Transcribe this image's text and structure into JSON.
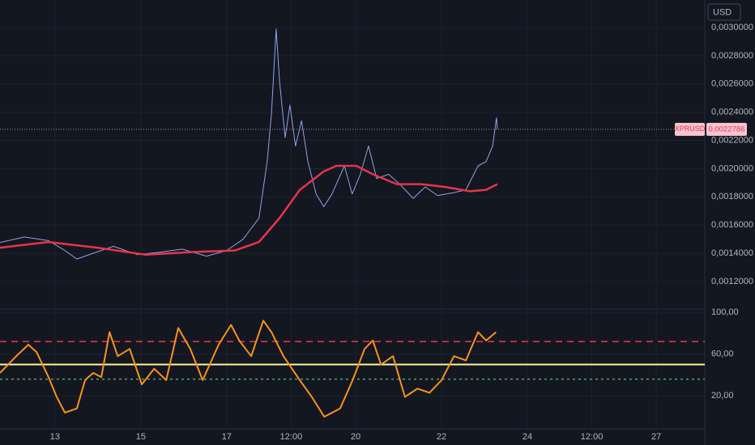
{
  "toolbar": {
    "currency": "USD"
  },
  "chart_data": [
    {
      "type": "line",
      "xlim": [
        11.72,
        28.13
      ],
      "ylim": [
        0.001005,
        0.003195
      ],
      "yticks": [
        {
          "value": 0.0012,
          "label": "0,0012000"
        },
        {
          "value": 0.0014,
          "label": "0,0014000"
        },
        {
          "value": 0.0016,
          "label": "0,0016000"
        },
        {
          "value": 0.0018,
          "label": "0,0018000"
        },
        {
          "value": 0.002,
          "label": "0,0020000"
        },
        {
          "value": 0.0022,
          "label": "0,0022000"
        },
        {
          "value": 0.0024,
          "label": "0,0024000"
        },
        {
          "value": 0.0026,
          "label": "0,0026000"
        },
        {
          "value": 0.0028,
          "label": "0,0028000"
        },
        {
          "value": 0.003,
          "label": "0,0030000"
        }
      ],
      "grid": true,
      "last_price": {
        "symbol": "XPRUSD",
        "value": 0.0022786,
        "label": "0,0022786"
      },
      "series": [
        {
          "color": "#8fa3e0",
          "width": 1,
          "x": [
            11.72,
            12.29,
            12.85,
            13.23,
            13.51,
            13.98,
            14.36,
            14.92,
            15.49,
            15.96,
            16.53,
            17.0,
            17.38,
            17.75,
            17.94,
            18.04,
            18.15,
            18.23,
            18.36,
            18.47,
            18.6,
            18.74,
            18.89,
            19.08,
            19.26,
            19.45,
            19.74,
            19.92,
            20.11,
            20.3,
            20.49,
            20.77,
            21.06,
            21.34,
            21.62,
            21.91,
            22.28,
            22.57,
            22.85,
            23.04,
            23.19,
            23.28,
            23.3
          ],
          "values": [
            0.001476,
            0.001516,
            0.00149,
            0.00142,
            0.00136,
            0.00141,
            0.00145,
            0.00139,
            0.00141,
            0.00143,
            0.00138,
            0.00142,
            0.0015,
            0.00165,
            0.00205,
            0.00239,
            0.00299,
            0.00262,
            0.00222,
            0.00245,
            0.00216,
            0.00234,
            0.00205,
            0.00182,
            0.00173,
            0.00182,
            0.00202,
            0.00182,
            0.00196,
            0.00216,
            0.00193,
            0.00196,
            0.00188,
            0.00179,
            0.00187,
            0.00181,
            0.00183,
            0.00185,
            0.00202,
            0.00205,
            0.00216,
            0.00236,
            0.00228
          ]
        },
        {
          "color": "#e8344a",
          "width": 2.5,
          "x": [
            11.72,
            12.85,
            13.98,
            15.11,
            16.25,
            17.19,
            17.75,
            18.23,
            18.7,
            19.26,
            19.55,
            20.02,
            20.4,
            20.96,
            21.53,
            22.09,
            22.66,
            23.04,
            23.3
          ],
          "values": [
            0.00144,
            0.00148,
            0.00144,
            0.00139,
            0.00141,
            0.00142,
            0.00148,
            0.00165,
            0.00185,
            0.00198,
            0.00202,
            0.00202,
            0.00196,
            0.00189,
            0.00189,
            0.00187,
            0.00184,
            0.00185,
            0.00189
          ]
        }
      ]
    },
    {
      "type": "line",
      "xlim": [
        11.72,
        28.13
      ],
      "ylim": [
        -11.5,
        102.3
      ],
      "yticks": [
        {
          "value": 20,
          "label": "20,00"
        },
        {
          "value": 60,
          "label": "60,00"
        },
        {
          "value": 100,
          "label": "100,00"
        }
      ],
      "xticks": [
        13,
        15,
        17,
        {
          "value": 18.5,
          "label": "12:00"
        },
        20,
        22,
        24,
        {
          "value": 25.5,
          "label": "12:00"
        },
        27
      ],
      "grid": true,
      "levels": [
        {
          "value": 72,
          "color": "#f23645",
          "style": "dashed"
        },
        {
          "value": 50,
          "color": "#fff59d",
          "style": "solid"
        },
        {
          "value": 36,
          "color": "#4caf50",
          "style": "dotted"
        }
      ],
      "series": [
        {
          "color": "#f7931a",
          "width": 2,
          "x": [
            11.72,
            12.1,
            12.38,
            12.57,
            12.85,
            13.04,
            13.23,
            13.51,
            13.7,
            13.89,
            14.08,
            14.27,
            14.46,
            14.74,
            15.02,
            15.31,
            15.59,
            15.87,
            16.15,
            16.44,
            16.81,
            17.1,
            17.29,
            17.57,
            17.85,
            18.04,
            18.32,
            18.7,
            18.98,
            19.27,
            19.64,
            19.93,
            20.21,
            20.4,
            20.59,
            20.87,
            21.15,
            21.44,
            21.72,
            22.0,
            22.29,
            22.57,
            22.85,
            23.04,
            23.27
          ],
          "values": [
            42,
            58,
            69,
            62,
            38,
            19,
            4,
            8,
            35,
            42,
            38,
            81,
            58,
            65,
            31,
            46,
            35,
            85,
            65,
            35,
            69,
            88,
            73,
            58,
            92,
            81,
            58,
            35,
            19,
            0,
            8,
            35,
            65,
            73,
            50,
            58,
            19,
            27,
            23,
            35,
            58,
            54,
            81,
            73,
            81
          ]
        }
      ]
    }
  ]
}
